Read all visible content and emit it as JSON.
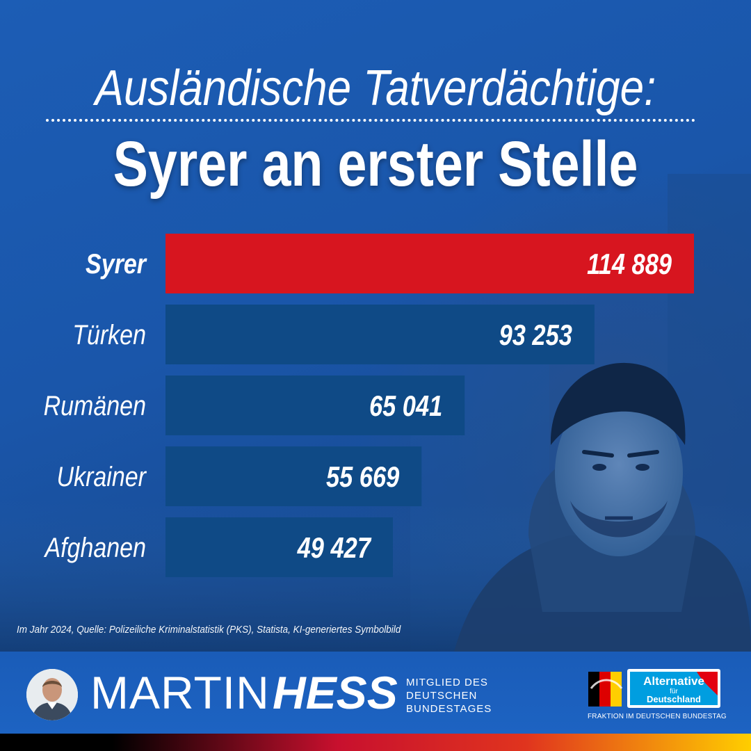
{
  "title": {
    "line1": "Ausländische Tatverdächtige:",
    "line2": "Syrer an erster Stelle"
  },
  "chart_data": {
    "type": "bar",
    "orientation": "horizontal",
    "categories": [
      "Syrer",
      "Türken",
      "Rumänen",
      "Ukrainer",
      "Afghanen"
    ],
    "values": [
      114889,
      93253,
      65041,
      55669,
      49427
    ],
    "value_labels": [
      "114 889",
      "93 253",
      "65 041",
      "55 669",
      "49 427"
    ],
    "highlight_index": 0,
    "colors": {
      "highlight": "#d7151f",
      "bar": "#0f4a86"
    }
  },
  "footer": {
    "source": "Im Jahr 2024, Quelle: Polizeiliche Kriminalstatistik (PKS), Statista, KI-generiertes Symbolbild",
    "name_first": "MARTIN",
    "name_last": "HESS",
    "member_lines": [
      "MITGLIED DES",
      "DEUTSCHEN",
      "BUNDESTAGES"
    ],
    "logo_word1": "Alternative",
    "logo_word2": "für",
    "logo_word3": "Deutschland",
    "fraktion": "FRAKTION IM DEUTSCHEN BUNDESTAG"
  }
}
